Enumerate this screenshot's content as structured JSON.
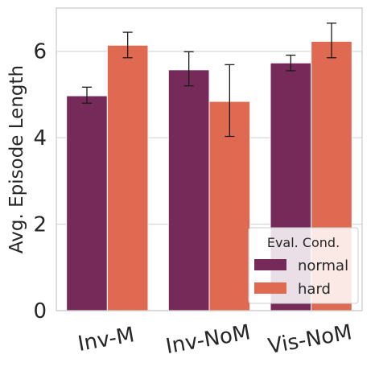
{
  "chart_data": {
    "type": "bar",
    "categories": [
      "Inv-M",
      "Inv-NoM",
      "Vis-NoM"
    ],
    "series": [
      {
        "name": "normal",
        "color": "#762a5a",
        "values": [
          4.97,
          5.57,
          5.73
        ],
        "err_low": [
          4.8,
          5.2,
          5.55
        ],
        "err_high": [
          5.17,
          5.99,
          5.91
        ]
      },
      {
        "name": "hard",
        "color": "#e06a51",
        "values": [
          6.14,
          4.84,
          6.23
        ],
        "err_low": [
          5.85,
          4.03,
          5.85
        ],
        "err_high": [
          6.44,
          5.69,
          6.65
        ]
      }
    ],
    "ylabel": "Avg. Episode Length",
    "xlabel": "",
    "ylim": [
      0,
      7
    ],
    "yticks": [
      0,
      2,
      4,
      6
    ],
    "grid": "horizontal",
    "legend": {
      "title": "Eval. Cond.",
      "placement": "bottom-right"
    }
  }
}
